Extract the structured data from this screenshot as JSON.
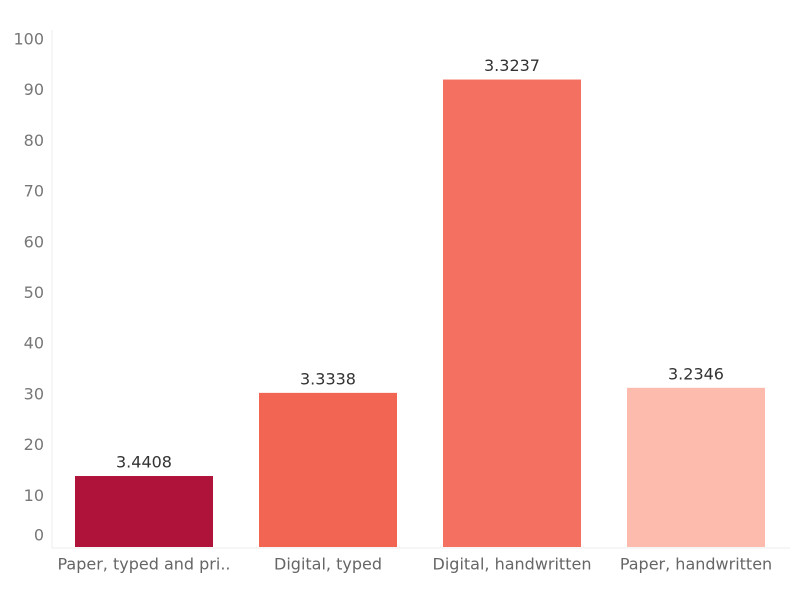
{
  "chart_data": {
    "type": "bar",
    "categories": [
      "Paper, typed and pri..",
      "Digital, typed",
      "Digital, handwritten",
      "Paper, handwritten"
    ],
    "values": [
      14,
      30.4,
      92.2,
      31.4
    ],
    "secondary_values": [
      3.4408,
      3.3338,
      3.3237,
      3.2346
    ],
    "colors": [
      "#b0133a",
      "#f26552",
      "#f47060",
      "#fdbbad"
    ],
    "ylim": [
      0,
      100
    ],
    "yticks": [
      0,
      10,
      20,
      30,
      40,
      50,
      60,
      70,
      80,
      90,
      100
    ],
    "grid": false
  }
}
